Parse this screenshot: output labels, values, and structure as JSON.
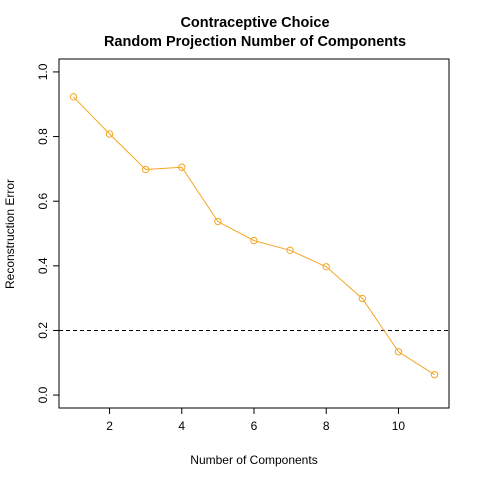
{
  "chart_data": {
    "type": "line",
    "title_lines": [
      "Contraceptive Choice",
      "Random Projection Number of Components"
    ],
    "xlabel": "Number of Components",
    "ylabel": "Reconstruction Error",
    "xlim": [
      0.6,
      11.4
    ],
    "ylim": [
      -0.04,
      1.04
    ],
    "x_ticks": [
      2,
      4,
      6,
      8,
      10
    ],
    "y_ticks": [
      0.0,
      0.2,
      0.4,
      0.6,
      0.8,
      1.0
    ],
    "y_tick_labels": [
      "0.0",
      "0.2",
      "0.4",
      "0.6",
      "0.8",
      "1.0"
    ],
    "grid": false,
    "series": [
      {
        "color": "#F5A623",
        "x": [
          1,
          2,
          3,
          4,
          5,
          6,
          7,
          8,
          9,
          10,
          11
        ],
        "values": [
          0.923,
          0.808,
          0.698,
          0.705,
          0.537,
          0.478,
          0.448,
          0.397,
          0.299,
          0.134,
          0.063
        ]
      }
    ],
    "reference_line": {
      "y": 0.2,
      "style": "dashed",
      "color": "#000000"
    }
  }
}
